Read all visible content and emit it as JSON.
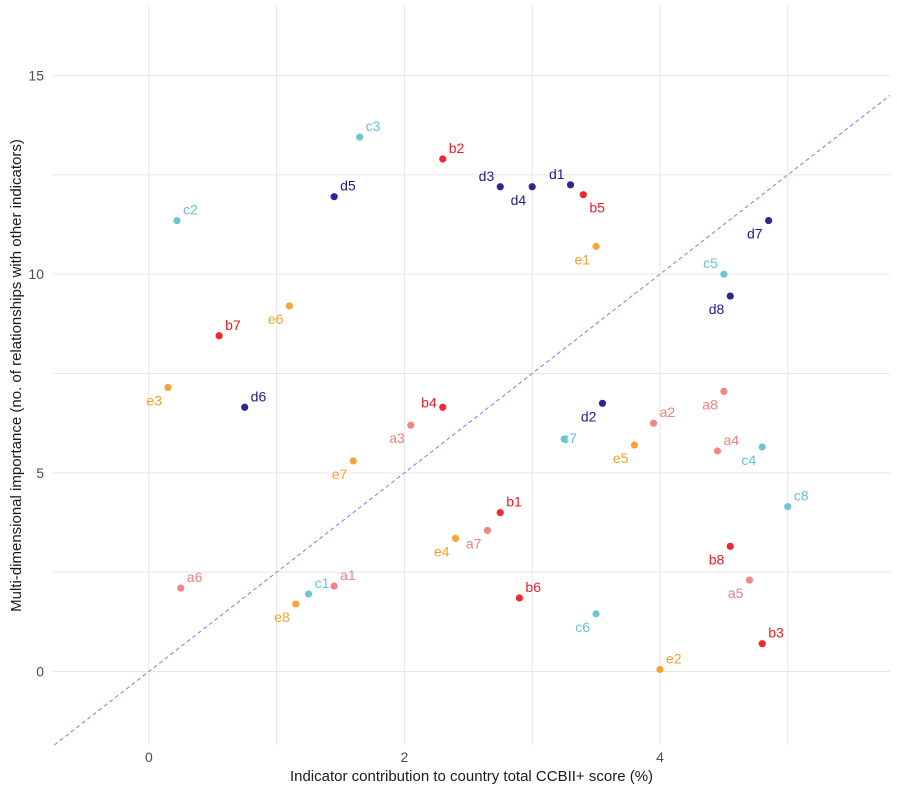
{
  "chart_data": {
    "type": "scatter",
    "xlabel": "Indicator contribution to country total CCBII+ score (%)",
    "ylabel": "Multi-dimensional importance (no. of relationships with other indicators)",
    "xlim": [
      -0.75,
      5.8
    ],
    "ylim": [
      -1.85,
      16.75
    ],
    "x_ticks": [
      0,
      2,
      4
    ],
    "y_ticks": [
      0,
      5,
      10,
      15
    ],
    "grid": true,
    "reference_line": {
      "slope": 2.5,
      "intercept": 0,
      "style": "dashed",
      "color": "#a06af0"
    },
    "colors": {
      "a": "#f07f7f",
      "b": "#ee1c25",
      "c": "#66c2d4",
      "d": "#1c1c8c",
      "e": "#f3a02c"
    },
    "points": [
      {
        "label": "a1",
        "group": "a",
        "x": 1.45,
        "y": 2.15
      },
      {
        "label": "a2",
        "group": "a",
        "x": 3.95,
        "y": 6.25
      },
      {
        "label": "a3",
        "group": "a",
        "x": 2.05,
        "y": 6.2
      },
      {
        "label": "a4",
        "group": "a",
        "x": 4.45,
        "y": 5.55
      },
      {
        "label": "a5",
        "group": "a",
        "x": 4.7,
        "y": 2.3
      },
      {
        "label": "a6",
        "group": "a",
        "x": 0.25,
        "y": 2.1
      },
      {
        "label": "a7",
        "group": "a",
        "x": 2.65,
        "y": 3.55
      },
      {
        "label": "a8",
        "group": "a",
        "x": 4.5,
        "y": 7.05
      },
      {
        "label": "b1",
        "group": "b",
        "x": 2.75,
        "y": 4.0
      },
      {
        "label": "b2",
        "group": "b",
        "x": 2.3,
        "y": 12.9
      },
      {
        "label": "b3",
        "group": "b",
        "x": 4.8,
        "y": 0.7
      },
      {
        "label": "b4",
        "group": "b",
        "x": 2.3,
        "y": 6.65
      },
      {
        "label": "b5",
        "group": "b",
        "x": 3.4,
        "y": 12.0
      },
      {
        "label": "b6",
        "group": "b",
        "x": 2.9,
        "y": 1.85
      },
      {
        "label": "b7",
        "group": "b",
        "x": 0.55,
        "y": 8.45
      },
      {
        "label": "b8",
        "group": "b",
        "x": 4.55,
        "y": 3.15
      },
      {
        "label": "c1",
        "group": "c",
        "x": 1.25,
        "y": 1.95
      },
      {
        "label": "c2",
        "group": "c",
        "x": 0.22,
        "y": 11.35
      },
      {
        "label": "c3",
        "group": "c",
        "x": 1.65,
        "y": 13.45
      },
      {
        "label": "c4",
        "group": "c",
        "x": 4.8,
        "y": 5.65
      },
      {
        "label": "c5",
        "group": "c",
        "x": 4.5,
        "y": 10.0
      },
      {
        "label": "c6",
        "group": "c",
        "x": 3.5,
        "y": 1.45
      },
      {
        "label": "c7",
        "group": "c",
        "x": 3.25,
        "y": 5.85
      },
      {
        "label": "c8",
        "group": "c",
        "x": 5.0,
        "y": 4.15
      },
      {
        "label": "d1",
        "group": "d",
        "x": 3.3,
        "y": 12.25
      },
      {
        "label": "d2",
        "group": "d",
        "x": 3.55,
        "y": 6.75
      },
      {
        "label": "d3",
        "group": "d",
        "x": 2.75,
        "y": 12.2
      },
      {
        "label": "d4",
        "group": "d",
        "x": 3.0,
        "y": 12.2
      },
      {
        "label": "d5",
        "group": "d",
        "x": 1.45,
        "y": 11.95
      },
      {
        "label": "d6",
        "group": "d",
        "x": 0.75,
        "y": 6.65
      },
      {
        "label": "d7",
        "group": "d",
        "x": 4.85,
        "y": 11.35
      },
      {
        "label": "d8",
        "group": "d",
        "x": 4.55,
        "y": 9.45
      },
      {
        "label": "e1",
        "group": "e",
        "x": 3.5,
        "y": 10.7
      },
      {
        "label": "e2",
        "group": "e",
        "x": 4.0,
        "y": 0.05
      },
      {
        "label": "e3",
        "group": "e",
        "x": 0.15,
        "y": 7.15
      },
      {
        "label": "e4",
        "group": "e",
        "x": 2.4,
        "y": 3.35
      },
      {
        "label": "e5",
        "group": "e",
        "x": 3.8,
        "y": 5.7
      },
      {
        "label": "e6",
        "group": "e",
        "x": 1.1,
        "y": 9.2
      },
      {
        "label": "e7",
        "group": "e",
        "x": 1.6,
        "y": 5.3
      },
      {
        "label": "e8",
        "group": "e",
        "x": 1.15,
        "y": 1.7
      }
    ]
  }
}
